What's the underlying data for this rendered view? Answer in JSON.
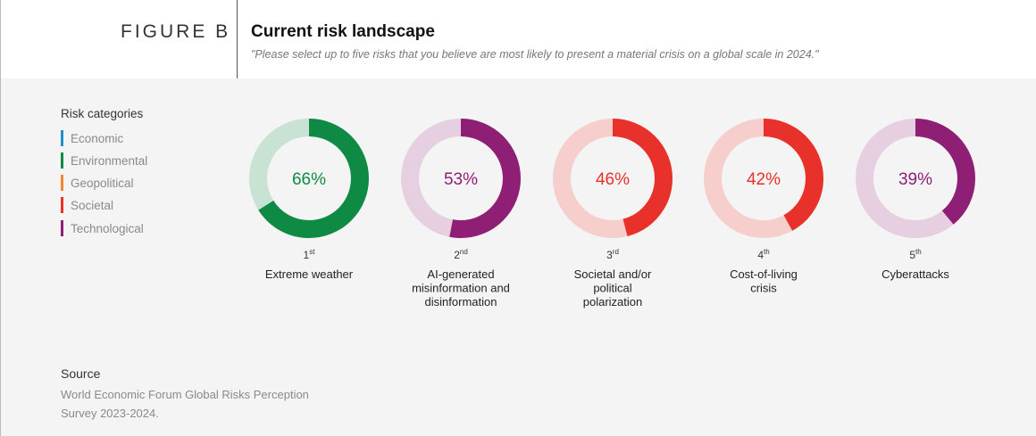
{
  "figure_label": "FIGURE B",
  "title": "Current risk landscape",
  "subtitle": "\"Please select up to five risks that you believe are most likely to present a material crisis on a global scale in 2024.\"",
  "legend": {
    "title": "Risk categories",
    "items": [
      {
        "label": "Economic",
        "color": "#1f8fcf"
      },
      {
        "label": "Environmental",
        "color": "#0e8a45"
      },
      {
        "label": "Geopolitical",
        "color": "#ef8833"
      },
      {
        "label": "Societal",
        "color": "#e8312a"
      },
      {
        "label": "Technological",
        "color": "#8e1f75"
      }
    ]
  },
  "chart_data": {
    "type": "pie",
    "title": "Current risk landscape",
    "series": [
      {
        "rank": "1",
        "rank_suffix": "st",
        "name": "Extreme weather",
        "value": 66,
        "category": "Environmental",
        "color": "#0e8a45",
        "track_color": "#c8e2d4"
      },
      {
        "rank": "2",
        "rank_suffix": "nd",
        "name": "AI-generated misinformation and disinformation",
        "value": 53,
        "category": "Technological",
        "color": "#8e1f75",
        "track_color": "#e6cfe0"
      },
      {
        "rank": "3",
        "rank_suffix": "rd",
        "name": "Societal and/or political polarization",
        "value": 46,
        "category": "Societal",
        "color": "#e8312a",
        "track_color": "#f6cfcc"
      },
      {
        "rank": "4",
        "rank_suffix": "th",
        "name": "Cost-of-living crisis",
        "value": 42,
        "category": "Societal",
        "color": "#e8312a",
        "track_color": "#f6cfcc"
      },
      {
        "rank": "5",
        "rank_suffix": "th",
        "name": "Cyberattacks",
        "value": 39,
        "category": "Technological",
        "color": "#8e1f75",
        "track_color": "#e6cfe0"
      }
    ]
  },
  "source": {
    "title": "Source",
    "text": "World Economic Forum Global Risks Perception Survey 2023-2024."
  }
}
